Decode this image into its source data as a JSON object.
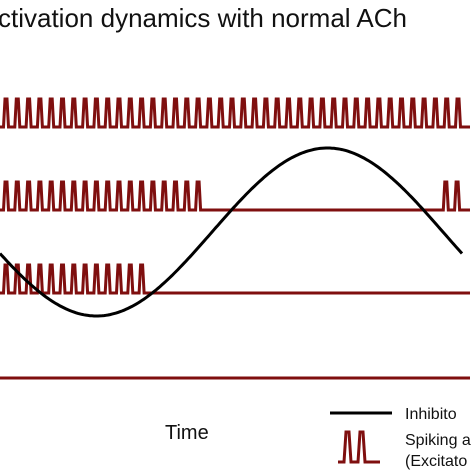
{
  "title": "ctivation dynamics with normal ACh",
  "x_axis_label": "Time",
  "legend": {
    "inhibition_label": "Inhibito",
    "spiking_label_line1": "Spiking a",
    "spiking_label_line2": "(Excitato"
  },
  "colors": {
    "spike": "#7f0f0f",
    "inhibition": "#000000",
    "text": "#111111"
  },
  "traces": [
    {
      "name": "trace-1",
      "active_until": 1.0
    },
    {
      "name": "trace-2",
      "active_until": 0.46,
      "resumes_at": 0.94
    },
    {
      "name": "trace-3",
      "active_until": 0.32
    },
    {
      "name": "trace-4",
      "active_until": 0.0
    }
  ]
}
